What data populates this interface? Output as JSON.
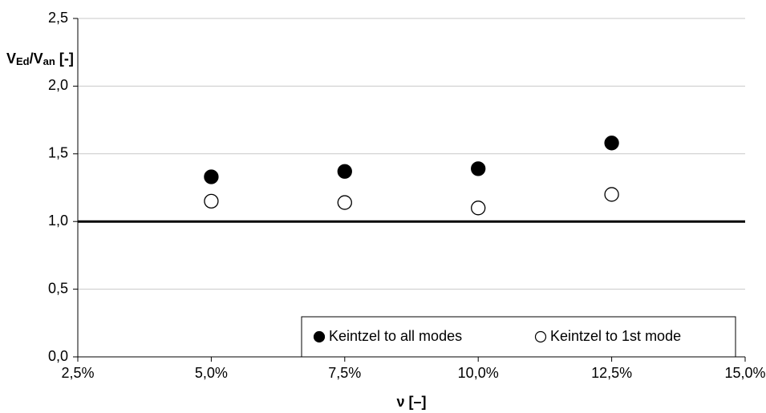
{
  "chart_data": {
    "type": "scatter",
    "ylabel": [
      "V",
      "Ed",
      "/V",
      "an",
      " [-]"
    ],
    "xlabel": "ν [–]",
    "x": [
      5,
      7.5,
      10,
      12.5
    ],
    "series": [
      {
        "name": "Keintzel to all modes",
        "color": "#000000",
        "values": [
          1.33,
          1.37,
          1.39,
          1.58
        ]
      },
      {
        "name": "Keintzel to 1st mode",
        "color": "#ffffff",
        "values": [
          1.15,
          1.14,
          1.1,
          1.2
        ]
      }
    ],
    "hline": 1,
    "xlim": [
      2.5,
      15
    ],
    "xticks": [
      {
        "value": 2.5,
        "label": "2,5%"
      },
      {
        "value": 5,
        "label": "5,0%"
      },
      {
        "value": 7.5,
        "label": "7,5%"
      },
      {
        "value": 10,
        "label": "10,0%"
      },
      {
        "value": 12.5,
        "label": "12,5%"
      },
      {
        "value": 15,
        "label": "15,0%"
      }
    ],
    "ylim": [
      0,
      2.5
    ],
    "yticks": [
      {
        "value": 0,
        "label": "0,0"
      },
      {
        "value": 0.5,
        "label": "0,5"
      },
      {
        "value": 1,
        "label": "1,0"
      },
      {
        "value": 1.5,
        "label": "1,5"
      },
      {
        "value": 2,
        "label": "2,0"
      },
      {
        "value": 2.5,
        "label": "2,5"
      }
    ],
    "grid": true,
    "legend": "lower right"
  }
}
